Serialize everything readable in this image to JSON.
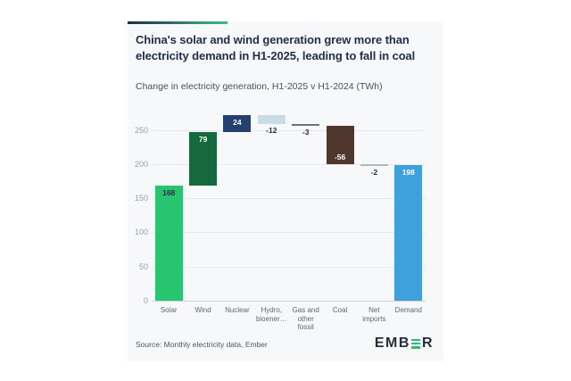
{
  "page": {
    "background": "#ffffff",
    "card_background": "#f7f8fa"
  },
  "header": {
    "accent_gradient_from": "#1d2b47",
    "accent_gradient_to": "#3fbe84",
    "title": "China's solar and wind generation grew more than electricity demand in H1-2025, leading to fall in coal",
    "subtitle": "Change in electricity generation, H1-2025 v H1-2024 (TWh)"
  },
  "chart_data": {
    "type": "bar",
    "subtype": "waterfall",
    "title": "China's solar and wind generation grew more than electricity demand in H1-2025, leading to fall in coal",
    "subtitle": "Change in electricity generation, H1-2025 v H1-2024 (TWh)",
    "ylabel": "TWh",
    "xlabel": "",
    "ylim": [
      0,
      283
    ],
    "yticks": [
      0,
      50,
      100,
      150,
      200,
      250
    ],
    "grid": true,
    "legend": false,
    "categories": [
      "Solar",
      "Wind",
      "Nuclear",
      "Hydro, bioener…",
      "Gas and other fossil",
      "Coal",
      "Net imports",
      "Demand"
    ],
    "values": [
      168,
      79,
      24,
      -12,
      -3,
      -56,
      -2,
      198
    ],
    "tick_labels": [
      "Solar",
      "Wind",
      "Nuclear",
      "Hydro,\nbioener…",
      "Gas and\nother\nfossil",
      "Coal",
      "Net\nimports",
      "Demand"
    ],
    "bars": [
      {
        "name": "solar",
        "value": 168,
        "start": 0,
        "end": 168,
        "color": "#29c46f",
        "value_label": "168",
        "label_style": "inside-top",
        "label_tone": "dark"
      },
      {
        "name": "wind",
        "value": 79,
        "start": 168,
        "end": 247,
        "color": "#15693c",
        "value_label": "79",
        "label_style": "inside-top",
        "label_tone": "light"
      },
      {
        "name": "nuclear",
        "value": 24,
        "start": 247,
        "end": 271,
        "color": "#25406f",
        "value_label": "24",
        "label_style": "inside-top",
        "label_tone": "light"
      },
      {
        "name": "hydro-bioenergy",
        "value": -12,
        "start": 271,
        "end": 259,
        "color": "#c8dbe9",
        "value_label": "-12",
        "label_style": "below",
        "label_tone": "dark"
      },
      {
        "name": "gas-other-fossil",
        "value": -3,
        "start": 259,
        "end": 256,
        "color": "#6e7276",
        "value_label": "-3",
        "label_style": "below",
        "label_tone": "dark"
      },
      {
        "name": "coal",
        "value": -56,
        "start": 256,
        "end": 200,
        "color": "#4f372d",
        "value_label": "-56",
        "label_style": "inside-bottom",
        "label_tone": "light"
      },
      {
        "name": "net-imports",
        "value": -2,
        "start": 200,
        "end": 198,
        "color": "#b3b8be",
        "value_label": "-2",
        "label_style": "below",
        "label_tone": "dark"
      },
      {
        "name": "demand",
        "value": 198,
        "start": 0,
        "end": 198,
        "color": "#3fa0dc",
        "value_label": "198",
        "label_style": "inside-top",
        "label_tone": "light"
      }
    ]
  },
  "footer": {
    "source": "Source: Monthly electricity data, Ember",
    "logo_pre": "EMB",
    "logo_post": "R"
  }
}
